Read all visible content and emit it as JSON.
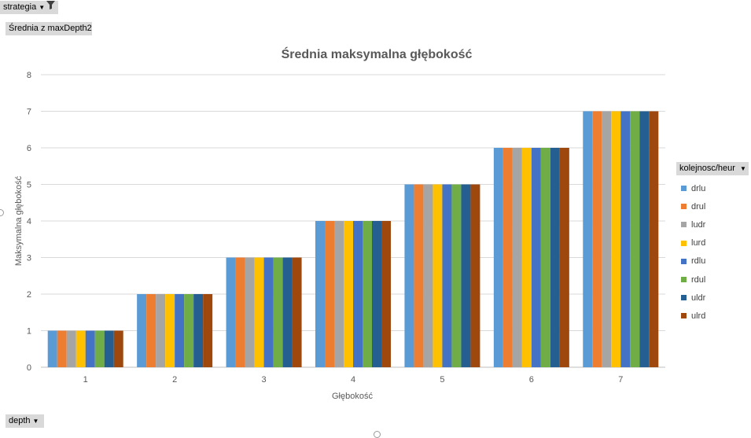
{
  "filters": {
    "strategia_label": "strategia",
    "value_label": "Średnia z maxDepth2",
    "depth_label": "depth",
    "legend_label": "kolejnosc/heur"
  },
  "icons": {
    "dropdown": "dropdown-arrow-icon",
    "filter": "funnel-icon"
  },
  "chart_data": {
    "type": "bar",
    "title": "Średnia maksymalna głębokość",
    "xlabel": "Głębokość",
    "ylabel": "Maksymalna głębokość",
    "categories": [
      "1",
      "2",
      "3",
      "4",
      "5",
      "6",
      "7"
    ],
    "ylim": [
      0,
      8
    ],
    "yticks": [
      0,
      1,
      2,
      3,
      4,
      5,
      6,
      7,
      8
    ],
    "grid": true,
    "legend_position": "right",
    "series": [
      {
        "name": "drlu",
        "color": "#5b9bd5",
        "values": [
          1,
          2,
          3,
          4,
          5,
          6,
          7
        ]
      },
      {
        "name": "drul",
        "color": "#ed7d31",
        "values": [
          1,
          2,
          3,
          4,
          5,
          6,
          7
        ]
      },
      {
        "name": "ludr",
        "color": "#a5a5a5",
        "values": [
          1,
          2,
          3,
          4,
          5,
          6,
          7
        ]
      },
      {
        "name": "lurd",
        "color": "#ffc000",
        "values": [
          1,
          2,
          3,
          4,
          5,
          6,
          7
        ]
      },
      {
        "name": "rdlu",
        "color": "#4472c4",
        "values": [
          1,
          2,
          3,
          4,
          5,
          6,
          7
        ]
      },
      {
        "name": "rdul",
        "color": "#70ad47",
        "values": [
          1,
          2,
          3,
          4,
          5,
          6,
          7
        ]
      },
      {
        "name": "uldr",
        "color": "#255e91",
        "values": [
          1,
          2,
          3,
          4,
          5,
          6,
          7
        ]
      },
      {
        "name": "ulrd",
        "color": "#9e480e",
        "values": [
          1,
          2,
          3,
          4,
          5,
          6,
          7
        ]
      }
    ]
  }
}
